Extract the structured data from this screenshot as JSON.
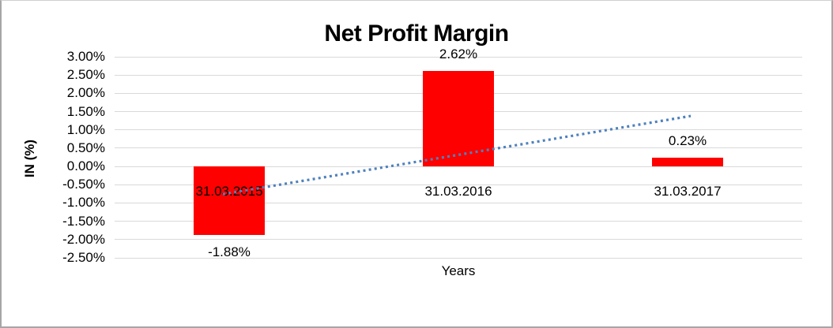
{
  "frame": {
    "background": "#ffffff",
    "border_color": "#a6a6a6"
  },
  "chart_data": {
    "type": "bar",
    "title": "Net Profit Margin",
    "xlabel": "Years",
    "ylabel": "IN (%)",
    "categories": [
      "31.03.2015",
      "31.03.2016",
      "31.03.2017"
    ],
    "series": [
      {
        "name": "Net Profit Margin",
        "values": [
          -1.88,
          2.62,
          0.23
        ],
        "data_labels": [
          "-1.88%",
          "2.62%",
          "0.23%"
        ],
        "color": "#ff0000"
      }
    ],
    "y_axis": {
      "min": -2.5,
      "max": 3.0,
      "step": 0.5,
      "tick_labels": [
        "3.00%",
        "2.50%",
        "2.00%",
        "1.50%",
        "1.00%",
        "0.50%",
        "0.00%",
        "-0.50%",
        "-1.00%",
        "-1.50%",
        "-2.00%",
        "-2.50%"
      ],
      "format": "percent"
    },
    "trendline": {
      "type": "linear",
      "style": "dotted",
      "color": "#4f81bd",
      "values_at_categories": [
        -0.73,
        0.32,
        1.38
      ]
    },
    "grid": true,
    "legend": "none",
    "gridline_color": "#d9d9d9"
  }
}
